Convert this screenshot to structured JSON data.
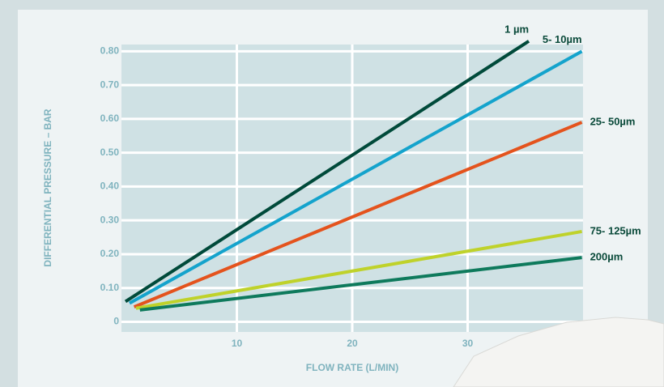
{
  "chart_data": {
    "type": "line",
    "x_label": "FLOW RATE (L/MIN)",
    "y_label": "DIFFERENTIAL PRESSURE – BAR",
    "xlim": [
      0,
      40
    ],
    "xticks": [
      10,
      20,
      30
    ],
    "ylim": [
      -0.03,
      0.82
    ],
    "yticks": [
      0,
      {
        "value": 0.1,
        "label": "0.10"
      },
      {
        "value": 0.2,
        "label": "0.20"
      },
      {
        "value": 0.3,
        "label": "0.30"
      },
      {
        "value": 0.4,
        "label": "0.40"
      },
      {
        "value": 0.5,
        "label": "0.50"
      },
      {
        "value": 0.6,
        "label": "0.60"
      },
      {
        "value": 0.7,
        "label": "0.70"
      },
      {
        "value": 0.8,
        "label": "0.80"
      }
    ],
    "grid": true,
    "series": [
      {
        "name": "1 µm",
        "color": "#004a3a",
        "x": [
          0.35,
          35.3
        ],
        "values": [
          0.06,
          0.83
        ]
      },
      {
        "name": "5- 10µm",
        "color": "#14a3cc",
        "x": [
          0.7,
          39.9
        ],
        "values": [
          0.055,
          0.8
        ]
      },
      {
        "name": "25- 50µm",
        "color": "#e4531d",
        "x": [
          1.1,
          39.9
        ],
        "values": [
          0.044,
          0.59
        ]
      },
      {
        "name": "75- 125µm",
        "color": "#bfd22a",
        "x": [
          1.26,
          39.9
        ],
        "values": [
          0.04,
          0.267
        ]
      },
      {
        "name": "200µm",
        "color": "#0e7a5c",
        "x": [
          1.6,
          39.9
        ],
        "values": [
          0.035,
          0.19
        ]
      }
    ]
  }
}
